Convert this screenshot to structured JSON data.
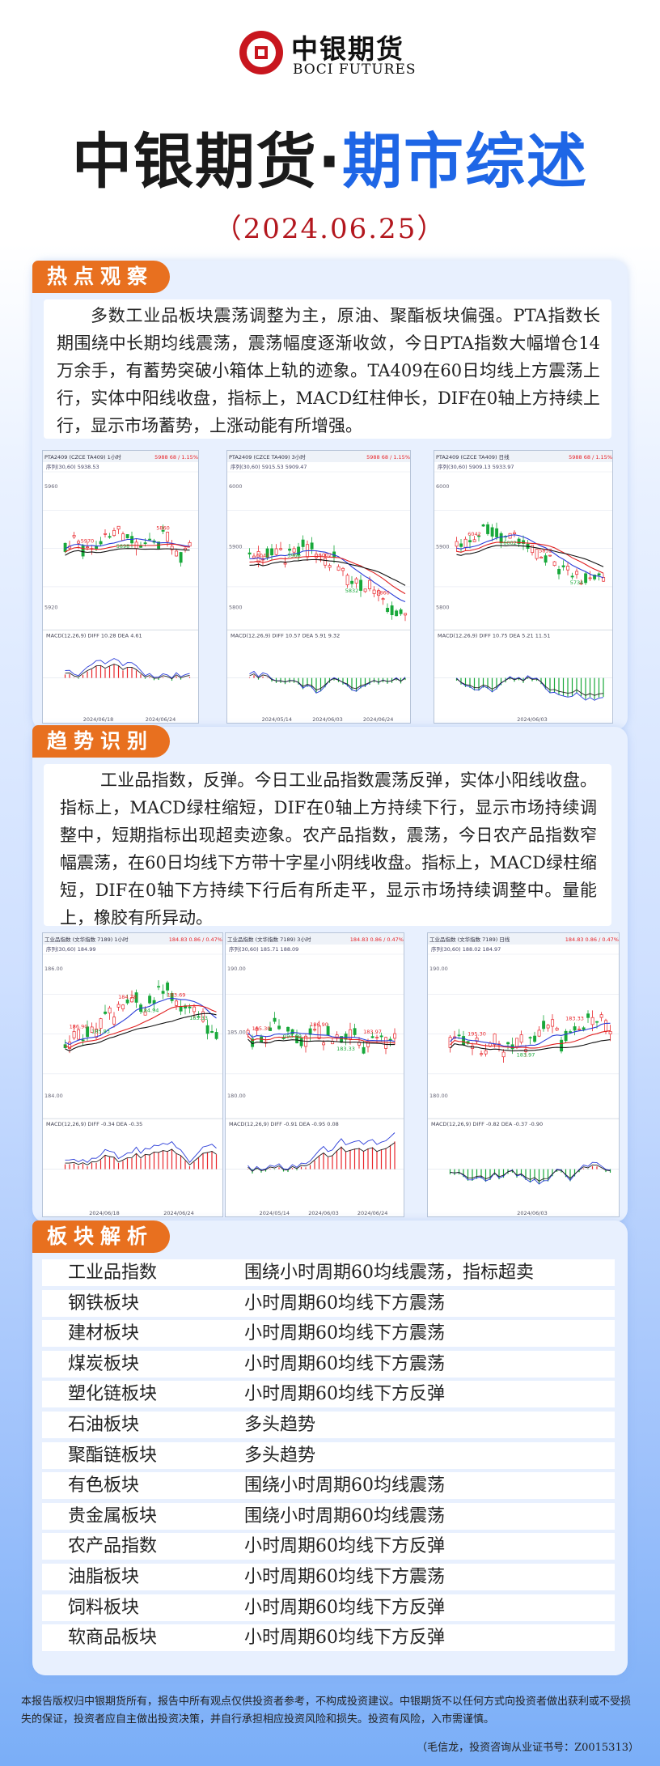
{
  "logo": {
    "cn": "中银期货",
    "en": "BOCI FUTURES"
  },
  "title": {
    "part1": "中银期货",
    "dot": "·",
    "part2": "期市综述"
  },
  "date": "（2024.06.25）",
  "sections": {
    "hot": {
      "tag": "热点观察",
      "text": "多数工业品板块震荡调整为主，原油、聚酯板块偏强。PTA指数长期围绕中长期均线震荡，震荡幅度逐渐收敛，今日PTA指数大幅增仓14万余手，有蓄势突破小箱体上轨的迹象。TA409在60日均线上方震荡上行，实体中阳线收盘，指标上，MACD红柱伸长，DIF在0轴上方持续上行，显示市场蓄势，上涨动能有所增强。"
    },
    "trend": {
      "tag": "趋势识别",
      "text": "工业品指数，反弹。今日工业品指数震荡反弹，实体小阳线收盘。指标上，MACD绿柱缩短，DIF在0轴上方持续下行，显示市场持续调整中，短期指标出现超卖迹象。农产品指数，震荡，今日农产品指数窄幅震荡，在60日均线下方带十字星小阴线收盘。指标上，MACD绿柱缩短，DIF在0轴下方持续下行后有所走平，显示市场持续调整中。量能上，橡胶有所异动。"
    },
    "sector": {
      "tag": "板块解析"
    }
  },
  "charts_pta": [
    {
      "header": "PTA2409 (CZCE TA409)  1小时",
      "ma": "序列(30,60)  5938.53",
      "hi": "5988",
      "chg": "68 / 1.15%",
      "levels": [
        "5960",
        "5920"
      ],
      "lbls": [
        "5970",
        "5898",
        "5860"
      ],
      "macd": "MACD(12,26,9)  DIFF 10.28  DEA 4.61",
      "dates": [
        "2024/06/18",
        "2024/06/24"
      ]
    },
    {
      "header": "PTA2409 (CZCE TA409)  3小时",
      "ma": "序列(30,60)  5915.53  5909.47",
      "hi": "5988",
      "chg": "68 / 1.15%",
      "levels": [
        "6000",
        "5900",
        "5800"
      ],
      "lbls": [
        "6042",
        "5960",
        "6002",
        "5832",
        "5860"
      ],
      "macd": "MACD(12,26,9)  DIFF 10.57  DEA 5.91  9.32",
      "dates": [
        "2024/05/14",
        "2024/06/03",
        "2024/06/24"
      ]
    },
    {
      "header": "PTA2409 (CZCE TA409)  日线",
      "ma": "序列(30,60)  5909.13  5933.97",
      "hi": "5988",
      "chg": "68 / 1.15%",
      "levels": [
        "6000",
        "5900",
        "5800"
      ],
      "lbls": [
        "6042",
        "6002",
        "5832",
        "5734"
      ],
      "macd": "MACD(12,26,9)  DIFF 10.75  DEA 5.21  11.51",
      "dates": [
        "2024/06/03"
      ]
    }
  ],
  "charts_ind": [
    {
      "header": "工业品指数 (文华指数 7189)  1小时",
      "ma": "序列(30,60)  184.99",
      "hi": "184.83",
      "chg": "0.86 / 0.47%",
      "levels": [
        "186.00",
        "184.00"
      ],
      "lbls": [
        "186.90",
        "185.83",
        "184.78",
        "184.94",
        "183.69",
        "183.33"
      ],
      "macd": "MACD(12,26,9)  DIFF -0.34  DEA -0.35",
      "dates": [
        "2024/06/18",
        "2024/06/24"
      ]
    },
    {
      "header": "工业品指数 (文华指数 7189)  3小时",
      "ma": "序列(30,60)  185.71  188.09",
      "hi": "184.83",
      "chg": "0.86 / 0.47%",
      "levels": [
        "190.00",
        "185.00",
        "180.00"
      ],
      "lbls": [
        "195.30",
        "193.69",
        "186.90",
        "183.33",
        "183.97"
      ],
      "macd": "MACD(12,26,9)  DIFF -0.91  DEA -0.95  0.08",
      "dates": [
        "2024/05/14",
        "2024/06/03",
        "2024/06/24"
      ]
    },
    {
      "header": "工业品指数 (文华指数 7189)  日线",
      "ma": "序列(30,60)  188.02  184.97",
      "hi": "184.83",
      "chg": "0.86 / 0.47%",
      "levels": [
        "190.00",
        "180.00"
      ],
      "lbls": [
        "195.30",
        "183.97",
        "183.33"
      ],
      "macd": "MACD(12,26,9)  DIFF -0.82  DEA -0.37  -0.90",
      "dates": [
        "2024/06/03"
      ]
    }
  ],
  "sector_rows": [
    {
      "name": "工业品指数",
      "desc": "围绕小时周期60均线震荡，指标超卖"
    },
    {
      "name": "钢铁板块",
      "desc": "小时周期60均线下方震荡"
    },
    {
      "name": "建材板块",
      "desc": "小时周期60均线下方震荡"
    },
    {
      "name": "煤炭板块",
      "desc": "小时周期60均线下方震荡"
    },
    {
      "name": "塑化链板块",
      "desc": "小时周期60均线下方反弹"
    },
    {
      "name": "石油板块",
      "desc": "多头趋势"
    },
    {
      "name": "聚酯链板块",
      "desc": "多头趋势"
    },
    {
      "name": "有色板块",
      "desc": "围绕小时周期60均线震荡"
    },
    {
      "name": "贵金属板块",
      "desc": "围绕小时周期60均线震荡"
    },
    {
      "name": "农产品指数",
      "desc": "小时周期60均线下方反弹"
    },
    {
      "name": "油脂板块",
      "desc": "小时周期60均线下方震荡"
    },
    {
      "name": "饲料板块",
      "desc": "小时周期60均线下方反弹"
    },
    {
      "name": "软商品板块",
      "desc": "小时周期60均线下方反弹"
    }
  ],
  "disclaimer": "本报告版权归中银期货所有，报告中所有观点仅供投资者参考，不构成投资建议。中银期货不以任何方式向投资者做出获利或不受损失的保证，投资者应自主做出投资决策，并自行承担相应投资风险和损失。投资有风险，入市需谨慎。",
  "analyst": "（毛信龙，投资咨询从业证书号：Z0015313）",
  "colors": {
    "brand_red": "#c8161e",
    "accent_blue": "#1e66e6",
    "tag_orange": "#e8701f",
    "up": "#e8262b",
    "down": "#18a83a"
  }
}
